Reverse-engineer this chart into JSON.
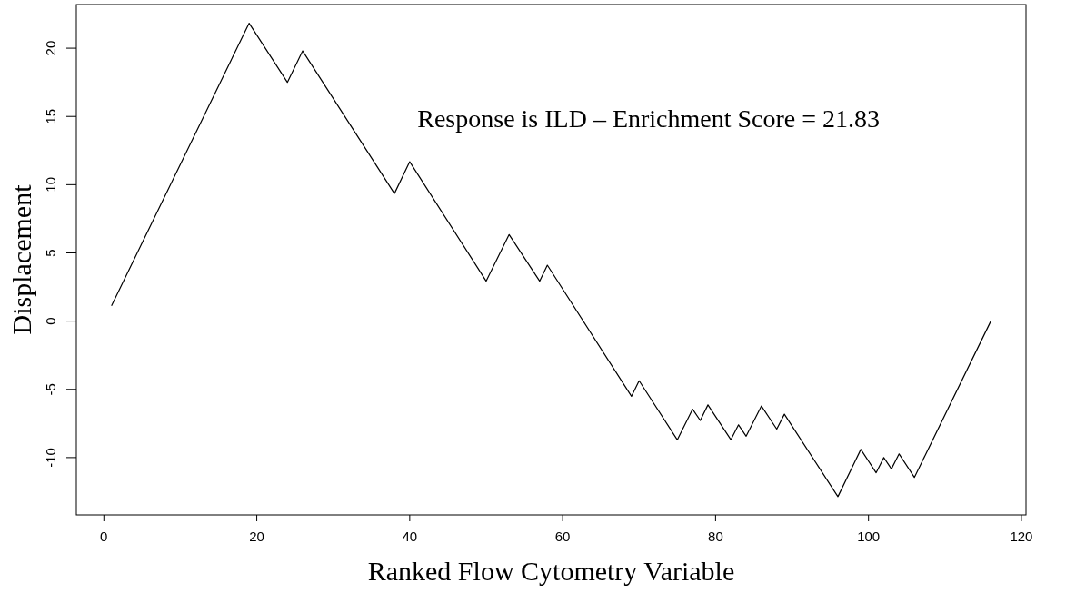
{
  "chart_data": {
    "type": "line",
    "xlabel": "Ranked Flow Cytometry Variable",
    "ylabel": "Displacement",
    "annotations": [
      "Response is ILD – Enrichment Score = 21.83"
    ],
    "series": [
      {
        "color": "#000000",
        "x": [
          1,
          19,
          24,
          26,
          38,
          40,
          50,
          53,
          57,
          58,
          69,
          70,
          75,
          77,
          78,
          79,
          82,
          83,
          84,
          86,
          88,
          89,
          96,
          99,
          101,
          102,
          103,
          104,
          106,
          116
        ],
        "values": [
          1.13,
          21.83,
          17.5,
          19.8,
          9.35,
          11.68,
          2.93,
          6.34,
          2.93,
          4.1,
          -5.51,
          -4.37,
          -8.7,
          -6.45,
          -7.28,
          -6.14,
          -8.69,
          -7.6,
          -8.43,
          -6.22,
          -7.91,
          -6.82,
          -12.86,
          -9.4,
          -11.11,
          -10,
          -10.83,
          -9.73,
          -11.45,
          0
        ]
      }
    ],
    "xlim": [
      -3.6,
      120.6
    ],
    "ylim": [
      -14.2,
      23.2
    ],
    "xticks": [
      0,
      20,
      40,
      60,
      80,
      100,
      120
    ],
    "yticks": [
      -10,
      -5,
      0,
      5,
      10,
      15,
      20
    ],
    "grid": false,
    "marker": "none",
    "line_style": "solid"
  }
}
